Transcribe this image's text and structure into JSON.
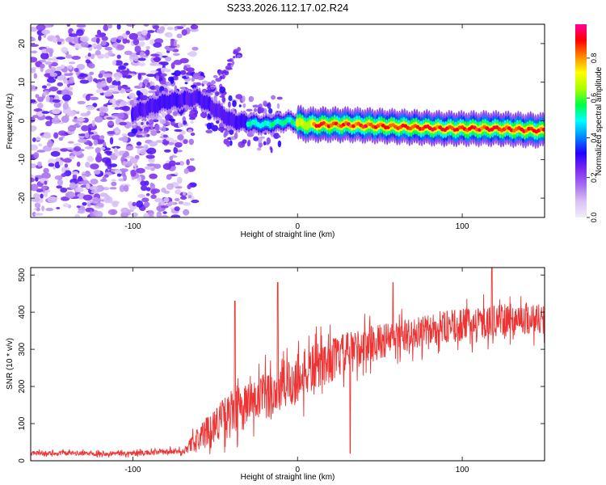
{
  "figure_title": "S233.2026.112.17.02.R24",
  "colors": {
    "snr_line": "#ee3333",
    "frame": "#000000",
    "background": "#ffffff",
    "colormap": [
      "#f2ecfb",
      "#d9c2f5",
      "#a56ef0",
      "#7a2bef",
      "#2200ff",
      "#0088ff",
      "#00ffff",
      "#00ff44",
      "#aaff00",
      "#ffff00",
      "#ff8800",
      "#ff0000",
      "#ff0099"
    ]
  },
  "chart_data": [
    {
      "type": "heatmap",
      "name": "spectrogram",
      "title": "",
      "xlabel": "Height of straight line (km)",
      "ylabel": "Frequency (Hz)",
      "xlim": [
        -162,
        150
      ],
      "ylim": [
        -25,
        25
      ],
      "xticks": [
        -100,
        0,
        100
      ],
      "yticks": [
        -20,
        -10,
        0,
        10,
        20
      ],
      "colorbar": {
        "label": "Normalized spectral amplitude",
        "range": [
          0,
          0.97
        ],
        "ticks": [
          "0.0",
          "0.2",
          "0.4",
          "0.6",
          "0.8"
        ]
      },
      "ridge": {
        "description_points": [
          [
            -100,
            2
          ],
          [
            -80,
            5
          ],
          [
            -60,
            6
          ],
          [
            -40,
            0
          ],
          [
            -20,
            -1
          ],
          [
            -5,
            0
          ],
          [
            5,
            -1
          ],
          [
            30,
            -1
          ],
          [
            60,
            -1.5
          ],
          [
            90,
            -2
          ],
          [
            120,
            -2
          ],
          [
            150,
            -2.5
          ]
        ],
        "peak_amplitude": 0.97
      }
    },
    {
      "type": "line",
      "name": "snr",
      "title": "",
      "xlabel": "Height of straight line (km)",
      "ylabel": "SNR (10 * v/v)",
      "xlim": [
        -162,
        150
      ],
      "ylim": [
        0,
        520
      ],
      "xticks": [
        -100,
        0,
        100
      ],
      "yticks": [
        0,
        100,
        200,
        300,
        400,
        500
      ],
      "envelope": {
        "x": [
          -162,
          -100,
          -70,
          -60,
          -50,
          -40,
          -30,
          -20,
          -10,
          0,
          10,
          20,
          30,
          40,
          50,
          60,
          70,
          80,
          90,
          100,
          110,
          120,
          130,
          140,
          150
        ],
        "mean": [
          20,
          20,
          25,
          60,
          100,
          130,
          150,
          170,
          195,
          220,
          250,
          270,
          290,
          310,
          320,
          330,
          340,
          350,
          360,
          365,
          370,
          375,
          380,
          385,
          380
        ],
        "noise_amplitude": [
          8,
          8,
          10,
          40,
          60,
          75,
          80,
          85,
          90,
          90,
          80,
          75,
          70,
          65,
          60,
          60,
          55,
          55,
          55,
          55,
          55,
          55,
          55,
          55,
          55
        ]
      },
      "spikes": [
        [
          -38,
          430
        ],
        [
          -12,
          480
        ],
        [
          32,
          20
        ],
        [
          118,
          520
        ],
        [
          58,
          480
        ]
      ]
    }
  ]
}
